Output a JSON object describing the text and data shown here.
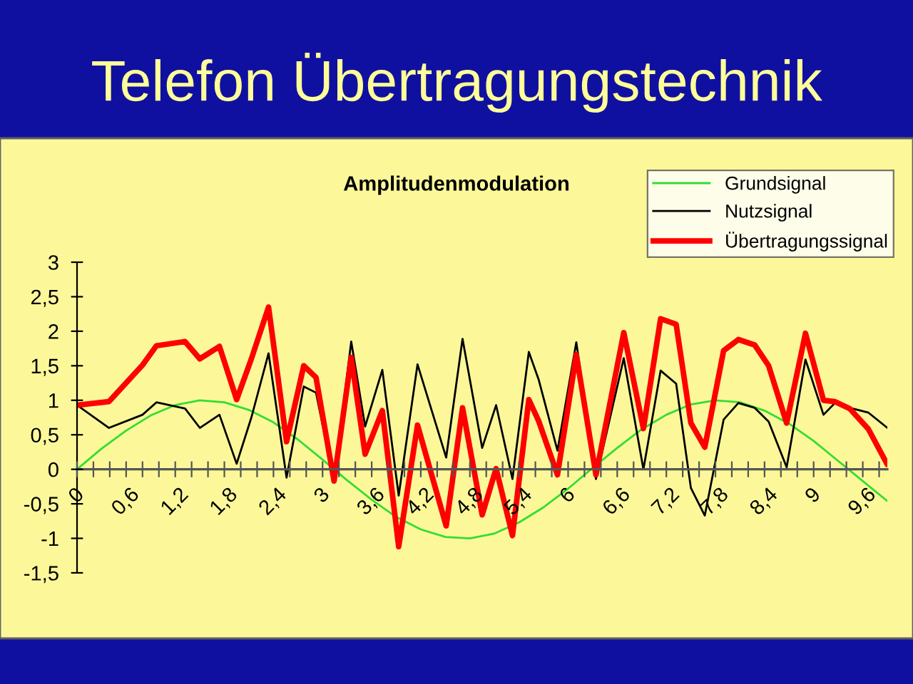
{
  "chart_data": {
    "type": "line",
    "title": "Telefon Übertragungstechnik",
    "subtitle": "Amplitudenmodulation",
    "xlim": [
      0,
      9.9
    ],
    "ylim": [
      -1.5,
      3
    ],
    "xticks": [
      {
        "value": 0,
        "label": "0"
      },
      {
        "value": 0.2,
        "label": null
      },
      {
        "value": 0.4,
        "label": null
      },
      {
        "value": 0.6,
        "label": "0,6"
      },
      {
        "value": 0.8,
        "label": null
      },
      {
        "value": 1.0,
        "label": null
      },
      {
        "value": 1.2,
        "label": "1,2"
      },
      {
        "value": 1.4,
        "label": null
      },
      {
        "value": 1.6,
        "label": null
      },
      {
        "value": 1.8,
        "label": "1,8"
      },
      {
        "value": 2.0,
        "label": null
      },
      {
        "value": 2.2,
        "label": null
      },
      {
        "value": 2.4,
        "label": "2,4"
      },
      {
        "value": 2.6,
        "label": null
      },
      {
        "value": 2.8,
        "label": null
      },
      {
        "value": 3.0,
        "label": "3"
      },
      {
        "value": 3.2,
        "label": null
      },
      {
        "value": 3.4,
        "label": null
      },
      {
        "value": 3.6,
        "label": "3,6"
      },
      {
        "value": 3.8,
        "label": null
      },
      {
        "value": 4.0,
        "label": null
      },
      {
        "value": 4.2,
        "label": "4,2"
      },
      {
        "value": 4.4,
        "label": null
      },
      {
        "value": 4.6,
        "label": null
      },
      {
        "value": 4.8,
        "label": "4,8"
      },
      {
        "value": 5.0,
        "label": null
      },
      {
        "value": 5.2,
        "label": null
      },
      {
        "value": 5.4,
        "label": "5,4"
      },
      {
        "value": 5.6,
        "label": null
      },
      {
        "value": 5.8,
        "label": null
      },
      {
        "value": 6.0,
        "label": "6"
      },
      {
        "value": 6.2,
        "label": null
      },
      {
        "value": 6.4,
        "label": null
      },
      {
        "value": 6.6,
        "label": "6,6"
      },
      {
        "value": 6.8,
        "label": null
      },
      {
        "value": 7.0,
        "label": null
      },
      {
        "value": 7.2,
        "label": "7,2"
      },
      {
        "value": 7.4,
        "label": null
      },
      {
        "value": 7.6,
        "label": null
      },
      {
        "value": 7.8,
        "label": "7,8"
      },
      {
        "value": 8.0,
        "label": null
      },
      {
        "value": 8.2,
        "label": null
      },
      {
        "value": 8.4,
        "label": "8,4"
      },
      {
        "value": 8.6,
        "label": null
      },
      {
        "value": 8.8,
        "label": null
      },
      {
        "value": 9.0,
        "label": "9"
      },
      {
        "value": 9.2,
        "label": null
      },
      {
        "value": 9.4,
        "label": null
      },
      {
        "value": 9.6,
        "label": "9,6"
      },
      {
        "value": 9.8,
        "label": null
      }
    ],
    "yticks": [
      {
        "value": -1.5,
        "label": "-1,5"
      },
      {
        "value": -1,
        "label": "-1"
      },
      {
        "value": -0.5,
        "label": "-0,5"
      },
      0,
      {
        "value": 0.5,
        "label": "0,5"
      },
      1,
      {
        "value": 1.5,
        "label": "1,5"
      },
      2,
      {
        "value": 2.5,
        "label": "2,5"
      },
      3
    ],
    "grid": false,
    "legend": "top right",
    "marker": "none",
    "line_style": "solid",
    "series": [
      {
        "name": "Grundsignal",
        "color": "#33dd33",
        "x": [
          0,
          0.3,
          0.6,
          0.9,
          1.2,
          1.5,
          1.8,
          2.1,
          2.4,
          2.7,
          3.0,
          3.3,
          3.6,
          3.9,
          4.2,
          4.5,
          4.8,
          5.1,
          5.4,
          5.7,
          6.0,
          6.3,
          6.6,
          6.9,
          7.2,
          7.5,
          7.8,
          8.1,
          8.4,
          8.7,
          9.0,
          9.3,
          9.6,
          9.9
        ],
        "values": [
          0,
          0.3,
          0.56,
          0.78,
          0.93,
          1.0,
          0.97,
          0.86,
          0.68,
          0.43,
          0.14,
          -0.16,
          -0.44,
          -0.69,
          -0.87,
          -0.98,
          -1.0,
          -0.93,
          -0.77,
          -0.55,
          -0.28,
          0.02,
          0.31,
          0.58,
          0.79,
          0.94,
          1.0,
          0.97,
          0.85,
          0.66,
          0.41,
          0.12,
          -0.17,
          -0.46
        ]
      },
      {
        "name": "Nutzsignal",
        "color": "#000000",
        "x": [
          0,
          0.39,
          0.8,
          0.97,
          1.32,
          1.5,
          1.74,
          1.95,
          2.13,
          2.34,
          2.56,
          2.77,
          2.92,
          3.14,
          3.35,
          3.52,
          3.73,
          3.93,
          4.16,
          4.51,
          4.71,
          4.95,
          5.12,
          5.32,
          5.52,
          5.64,
          5.87,
          6.1,
          6.34,
          6.68,
          6.92,
          7.13,
          7.32,
          7.5,
          7.67,
          7.9,
          8.08,
          8.28,
          8.45,
          8.67,
          8.9,
          9.12,
          9.26,
          9.44,
          9.67,
          9.9
        ],
        "values": [
          0.93,
          0.6,
          0.79,
          0.97,
          0.88,
          0.6,
          0.79,
          0.08,
          0.75,
          1.68,
          -0.12,
          1.2,
          1.11,
          -0.17,
          1.85,
          0.62,
          1.44,
          -0.38,
          1.52,
          0.17,
          1.89,
          0.31,
          0.93,
          -0.14,
          1.7,
          1.3,
          0.27,
          1.84,
          -0.14,
          1.61,
          0.0,
          1.43,
          1.24,
          -0.27,
          -0.67,
          0.72,
          0.96,
          0.89,
          0.69,
          0.03,
          1.59,
          0.79,
          0.96,
          0.89,
          0.82,
          0.6
        ]
      },
      {
        "name": "Übertragungssignal",
        "color": "#ff0000",
        "x": [
          0,
          0.39,
          0.8,
          0.97,
          1.32,
          1.5,
          1.74,
          1.95,
          2.13,
          2.34,
          2.56,
          2.77,
          2.92,
          3.14,
          3.35,
          3.52,
          3.73,
          3.93,
          4.16,
          4.51,
          4.71,
          4.95,
          5.12,
          5.32,
          5.52,
          5.64,
          5.87,
          6.1,
          6.34,
          6.68,
          6.92,
          7.13,
          7.32,
          7.5,
          7.67,
          7.9,
          8.08,
          8.28,
          8.45,
          8.67,
          8.9,
          9.12,
          9.26,
          9.44,
          9.67,
          9.9
        ],
        "values": [
          0.93,
          0.98,
          1.51,
          1.79,
          1.85,
          1.6,
          1.78,
          1.01,
          1.6,
          2.35,
          0.4,
          1.5,
          1.33,
          -0.17,
          1.62,
          0.22,
          0.85,
          -1.12,
          0.64,
          -0.82,
          0.89,
          -0.66,
          0.01,
          -0.96,
          1.01,
          0.7,
          -0.08,
          1.66,
          -0.08,
          1.98,
          0.59,
          2.18,
          2.1,
          0.67,
          0.32,
          1.72,
          1.88,
          1.8,
          1.5,
          0.67,
          1.97,
          1.0,
          0.98,
          0.88,
          0.58,
          0.07
        ]
      }
    ]
  }
}
